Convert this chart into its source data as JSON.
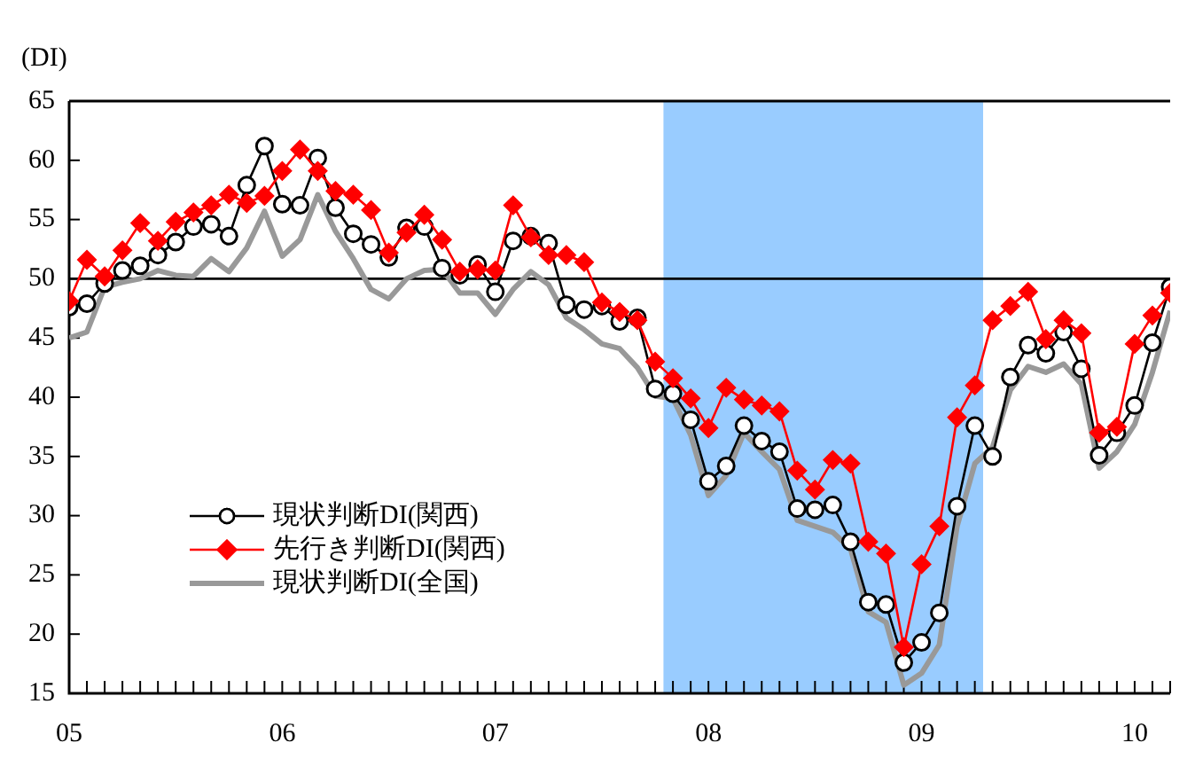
{
  "chart_data": {
    "type": "line",
    "ylabel": "(DI)",
    "x": [
      "2005-01",
      "2005-02",
      "2005-03",
      "2005-04",
      "2005-05",
      "2005-06",
      "2005-07",
      "2005-08",
      "2005-09",
      "2005-10",
      "2005-11",
      "2005-12",
      "2006-01",
      "2006-02",
      "2006-03",
      "2006-04",
      "2006-05",
      "2006-06",
      "2006-07",
      "2006-08",
      "2006-09",
      "2006-10",
      "2006-11",
      "2006-12",
      "2007-01",
      "2007-02",
      "2007-03",
      "2007-04",
      "2007-05",
      "2007-06",
      "2007-07",
      "2007-08",
      "2007-09",
      "2007-10",
      "2007-11",
      "2007-12",
      "2008-01",
      "2008-02",
      "2008-03",
      "2008-04",
      "2008-05",
      "2008-06",
      "2008-07",
      "2008-08",
      "2008-09",
      "2008-10",
      "2008-11",
      "2008-12",
      "2009-01",
      "2009-02",
      "2009-03",
      "2009-04",
      "2009-05",
      "2009-06",
      "2009-07",
      "2009-08",
      "2009-09",
      "2009-10",
      "2009-11",
      "2009-12",
      "2010-01",
      "2010-02",
      "2010-03"
    ],
    "series": [
      {
        "name": "現状判断DI(関西)",
        "color": "#000000",
        "marker": "circle",
        "values": [
          47.6,
          47.9,
          49.6,
          50.7,
          51.1,
          52.0,
          53.1,
          54.4,
          54.6,
          53.6,
          57.9,
          61.2,
          56.3,
          56.2,
          60.2,
          56.0,
          53.8,
          52.9,
          51.8,
          54.3,
          54.4,
          50.9,
          50.3,
          51.2,
          48.9,
          53.2,
          53.6,
          53.0,
          47.8,
          47.4,
          47.7,
          46.4,
          46.7,
          40.7,
          40.3,
          38.1,
          32.9,
          34.2,
          37.6,
          36.3,
          35.4,
          30.6,
          30.5,
          30.9,
          27.8,
          22.7,
          22.5,
          17.6,
          19.3,
          21.8,
          30.8,
          37.6,
          35.0,
          41.7,
          44.4,
          43.7,
          45.5,
          42.4,
          35.1,
          37.0,
          39.3,
          44.6,
          49.3
        ]
      },
      {
        "name": "先行き判断DI(関西)",
        "color": "#ff0000",
        "marker": "diamond",
        "values": [
          48.1,
          51.6,
          50.2,
          52.4,
          54.7,
          53.2,
          54.8,
          55.6,
          56.2,
          57.1,
          56.4,
          57.0,
          59.1,
          60.9,
          59.1,
          57.4,
          57.1,
          55.8,
          52.2,
          53.9,
          55.4,
          53.3,
          50.6,
          50.8,
          50.7,
          56.2,
          53.5,
          52.0,
          52.0,
          51.4,
          48.0,
          47.2,
          46.5,
          43.0,
          41.6,
          39.9,
          37.4,
          40.8,
          39.8,
          39.3,
          38.8,
          33.8,
          32.2,
          34.7,
          34.4,
          27.8,
          26.8,
          18.9,
          25.9,
          29.1,
          38.3,
          41.0,
          46.5,
          47.7,
          48.9,
          44.9,
          46.5,
          45.4,
          37.0,
          37.5,
          44.5,
          46.9,
          48.8
        ]
      },
      {
        "name": "現状判断DI(全国)",
        "color": "#999999",
        "marker": "none",
        "values": [
          45.0,
          45.5,
          49.3,
          49.7,
          50.0,
          50.7,
          50.3,
          50.2,
          51.7,
          50.6,
          52.6,
          55.7,
          51.9,
          53.3,
          57.1,
          54.0,
          51.7,
          49.1,
          48.3,
          50.0,
          50.7,
          50.8,
          48.8,
          48.8,
          47.0,
          49.1,
          50.6,
          49.5,
          46.7,
          45.7,
          44.5,
          44.1,
          42.5,
          40.1,
          39.9,
          36.8,
          31.7,
          33.4,
          37.0,
          35.4,
          33.9,
          29.6,
          29.1,
          28.6,
          27.2,
          21.9,
          21.0,
          15.7,
          16.7,
          19.1,
          29.1,
          34.4,
          35.8,
          40.6,
          42.6,
          42.1,
          42.8,
          41.1,
          34.0,
          35.4,
          37.7,
          42.1,
          47.3
        ]
      }
    ],
    "xlim": [
      "2005-01",
      "2010-03"
    ],
    "xticks": [
      {
        "value": "2005-01",
        "label": "05"
      },
      {
        "value": "2005-02",
        "label": null
      },
      {
        "value": "2005-03",
        "label": null
      },
      {
        "value": "2005-04",
        "label": null
      },
      {
        "value": "2005-05",
        "label": null
      },
      {
        "value": "2005-06",
        "label": null
      },
      {
        "value": "2005-07",
        "label": null
      },
      {
        "value": "2005-08",
        "label": null
      },
      {
        "value": "2005-09",
        "label": null
      },
      {
        "value": "2005-10",
        "label": null
      },
      {
        "value": "2005-11",
        "label": null
      },
      {
        "value": "2005-12",
        "label": null
      },
      {
        "value": "2006-01",
        "label": "06"
      },
      {
        "value": "2006-02",
        "label": null
      },
      {
        "value": "2006-03",
        "label": null
      },
      {
        "value": "2006-04",
        "label": null
      },
      {
        "value": "2006-05",
        "label": null
      },
      {
        "value": "2006-06",
        "label": null
      },
      {
        "value": "2006-07",
        "label": null
      },
      {
        "value": "2006-08",
        "label": null
      },
      {
        "value": "2006-09",
        "label": null
      },
      {
        "value": "2006-10",
        "label": null
      },
      {
        "value": "2006-11",
        "label": null
      },
      {
        "value": "2006-12",
        "label": null
      },
      {
        "value": "2007-01",
        "label": "07"
      },
      {
        "value": "2007-02",
        "label": null
      },
      {
        "value": "2007-03",
        "label": null
      },
      {
        "value": "2007-04",
        "label": null
      },
      {
        "value": "2007-05",
        "label": null
      },
      {
        "value": "2007-06",
        "label": null
      },
      {
        "value": "2007-07",
        "label": null
      },
      {
        "value": "2007-08",
        "label": null
      },
      {
        "value": "2007-09",
        "label": null
      },
      {
        "value": "2007-10",
        "label": null
      },
      {
        "value": "2007-11",
        "label": null
      },
      {
        "value": "2007-12",
        "label": null
      },
      {
        "value": "2008-01",
        "label": "08"
      },
      {
        "value": "2008-02",
        "label": null
      },
      {
        "value": "2008-03",
        "label": null
      },
      {
        "value": "2008-04",
        "label": null
      },
      {
        "value": "2008-05",
        "label": null
      },
      {
        "value": "2008-06",
        "label": null
      },
      {
        "value": "2008-07",
        "label": null
      },
      {
        "value": "2008-08",
        "label": null
      },
      {
        "value": "2008-09",
        "label": null
      },
      {
        "value": "2008-10",
        "label": null
      },
      {
        "value": "2008-11",
        "label": null
      },
      {
        "value": "2008-12",
        "label": null
      },
      {
        "value": "2009-01",
        "label": "09"
      },
      {
        "value": "2009-02",
        "label": null
      },
      {
        "value": "2009-03",
        "label": null
      },
      {
        "value": "2009-04",
        "label": null
      },
      {
        "value": "2009-05",
        "label": null
      },
      {
        "value": "2009-06",
        "label": null
      },
      {
        "value": "2009-07",
        "label": null
      },
      {
        "value": "2009-08",
        "label": null
      },
      {
        "value": "2009-09",
        "label": null
      },
      {
        "value": "2009-10",
        "label": null
      },
      {
        "value": "2009-11",
        "label": null
      },
      {
        "value": "2009-12",
        "label": null
      },
      {
        "value": "2010-01",
        "label": "10"
      },
      {
        "value": "2010-02",
        "label": null
      },
      {
        "value": "2010-03",
        "label": null
      }
    ],
    "ylim": [
      15,
      65
    ],
    "yticks": [
      15,
      20,
      25,
      30,
      35,
      40,
      45,
      50,
      55,
      60,
      65
    ],
    "ref_lines": [
      {
        "axis": "y",
        "value": 50,
        "color": "#000000"
      }
    ],
    "bands": [
      {
        "axis": "x",
        "from": "2007-10-15",
        "to": "2009-04-15",
        "color": "#99ccff"
      }
    ],
    "grid": false,
    "legend": "bottom left"
  }
}
